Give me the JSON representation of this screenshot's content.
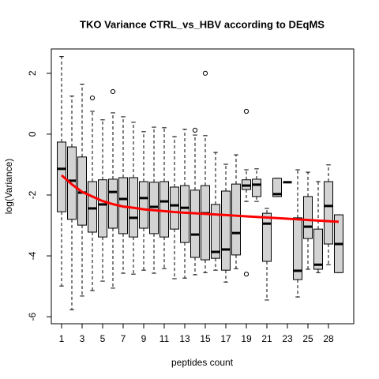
{
  "chart_data": {
    "type": "boxplot",
    "title": "TKO Variance CTRL_vs_HBV according to DEqMS",
    "xlabel": "peptides count",
    "ylabel": "log(Variance)",
    "categories": [
      "1",
      null,
      "3",
      null,
      "5",
      null,
      "7",
      null,
      "9",
      null,
      "11",
      null,
      "13",
      null,
      "15",
      null,
      "17",
      null,
      "19",
      null,
      "21",
      null,
      "23",
      null,
      "25",
      null,
      "28",
      null
    ],
    "ylim": [
      -6.23,
      2.8
    ],
    "yticks": [
      -6,
      -4,
      -2,
      0,
      2
    ],
    "box_color": "#d3d3d3",
    "min": [
      -4.99,
      -5.77,
      -5.32,
      -5.14,
      -4.83,
      -5.06,
      -4.57,
      -4.6,
      -4.47,
      -4.57,
      -4.42,
      -4.75,
      -4.73,
      -4.62,
      -4.55,
      -4.47,
      -4.86,
      -4.42,
      -2.21,
      -2.21,
      -5.45,
      -2.05,
      -1.58,
      -5.35,
      -4.44,
      -4.55,
      -4.29,
      -4.55
    ],
    "q1": [
      -2.55,
      -2.8,
      -2.99,
      -3.22,
      -3.38,
      -3.09,
      -3.27,
      -3.38,
      -3.09,
      -3.27,
      -3.38,
      -3.12,
      -3.56,
      -4.05,
      -4.13,
      -4.08,
      -4.47,
      -3.97,
      -1.82,
      -2.05,
      -4.18,
      -2.05,
      -1.58,
      -4.78,
      -3.43,
      -4.44,
      -3.61,
      -4.55
    ],
    "median": [
      -1.14,
      -1.53,
      -1.92,
      -2.44,
      -2.31,
      -1.9,
      -2.13,
      -2.75,
      -2.1,
      -2.39,
      -2.21,
      -2.34,
      -2.42,
      -3.3,
      -2.6,
      -3.87,
      -3.79,
      -3.25,
      -1.69,
      -1.66,
      -2.94,
      -1.97,
      -1.58,
      -4.49,
      -3.04,
      -4.29,
      -2.36,
      -3.61
    ],
    "q3": [
      -0.26,
      -0.42,
      -0.75,
      -1.56,
      -1.5,
      -1.48,
      -1.43,
      -1.43,
      -1.56,
      -1.58,
      -1.56,
      -1.74,
      -1.69,
      -1.84,
      -1.69,
      -2.31,
      -1.87,
      -1.64,
      -1.5,
      -1.48,
      -2.6,
      -1.45,
      -1.58,
      -2.75,
      -2.05,
      -3.12,
      -1.56,
      -2.65
    ],
    "max": [
      2.55,
      1.25,
      1.64,
      0.75,
      0.47,
      0.7,
      0.57,
      0.39,
      0.08,
      0.23,
      0.21,
      -0.08,
      0.16,
      -0.03,
      -0.05,
      -0.6,
      -0.99,
      -0.68,
      -1.17,
      -1.14,
      -2.44,
      -1.45,
      -1.58,
      -1.17,
      -1.25,
      -1.56,
      -1.01,
      -2.65
    ],
    "outliers": [
      [],
      [],
      [],
      [
        1.19
      ],
      [],
      [
        1.4
      ],
      [],
      [],
      [],
      [],
      [],
      [],
      [],
      [
        0.13
      ],
      [
        2.0
      ],
      [],
      [],
      [],
      [
        0.75,
        -4.6
      ],
      [],
      [],
      [],
      [],
      [],
      [],
      [],
      [],
      []
    ],
    "trend": {
      "color": "#ff0000",
      "values": [
        -1.35,
        -1.65,
        -1.9,
        -2.05,
        -2.2,
        -2.3,
        -2.38,
        -2.42,
        -2.47,
        -2.5,
        -2.53,
        -2.56,
        -2.58,
        -2.6,
        -2.62,
        -2.64,
        -2.66,
        -2.68,
        -2.7,
        -2.72,
        -2.74,
        -2.76,
        -2.78,
        -2.8,
        -2.82,
        -2.84,
        -2.86,
        -2.88
      ]
    }
  }
}
